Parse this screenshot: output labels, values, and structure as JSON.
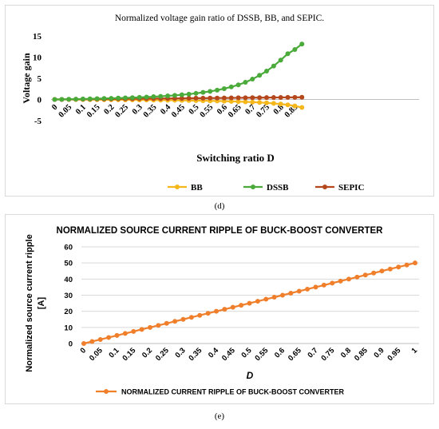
{
  "chart_data": [
    {
      "type": "line",
      "title": "Normalized voltage gain ratio of DSSB, BB, and SEPIC.",
      "xlabel": "Switching ratio D",
      "ylabel": "Voltage gain",
      "ylim": [
        -5,
        15
      ],
      "yticks": [
        "15",
        "10",
        "5",
        "0",
        "-5"
      ],
      "x_ticklabels": [
        "0",
        "0.05",
        "0.1",
        "0.15",
        "0.2",
        "0.25",
        "0.3",
        "0.35",
        "0.4",
        "0.45",
        "0.5",
        "0.55",
        "0.6",
        "0.65",
        "0.7",
        "0.75",
        "0.8",
        "0.85"
      ],
      "grid": false,
      "legend": "bottom",
      "series": [
        {
          "name": "BB",
          "color": "#f5b81c",
          "x": [
            0,
            0.025,
            0.05,
            0.075,
            0.1,
            0.125,
            0.15,
            0.175,
            0.2,
            0.225,
            0.25,
            0.275,
            0.3,
            0.325,
            0.35,
            0.375,
            0.4,
            0.425,
            0.45,
            0.475,
            0.5,
            0.525,
            0.55,
            0.575,
            0.6,
            0.625,
            0.65,
            0.675,
            0.7,
            0.725,
            0.75,
            0.775,
            0.8,
            0.825,
            0.85,
            0.875
          ],
          "values": [
            0,
            -0.03,
            -0.05,
            -0.08,
            -0.11,
            -0.14,
            -0.18,
            -0.21,
            -0.25,
            -0.29,
            -0.33,
            -0.38,
            -0.43,
            -0.48,
            -0.54,
            -0.6,
            -0.67,
            -0.74,
            -0.82,
            -0.9,
            -1,
            -1.1,
            -1.22,
            -1.35,
            -1.5,
            -1.67,
            -1.86,
            -2.08,
            -2.33,
            -2.64,
            -3,
            -3.44,
            -4,
            -4.71,
            -5.67,
            -7
          ]
        },
        {
          "name": "DSSB",
          "color": "#4aaa3a",
          "x": [
            0,
            0.025,
            0.05,
            0.075,
            0.1,
            0.125,
            0.15,
            0.175,
            0.2,
            0.225,
            0.25,
            0.275,
            0.3,
            0.325,
            0.35,
            0.375,
            0.4,
            0.425,
            0.45,
            0.475,
            0.5,
            0.525,
            0.55,
            0.575,
            0.6,
            0.625,
            0.65,
            0.675,
            0.7,
            0.725,
            0.75,
            0.775,
            0.8,
            0.825,
            0.85,
            0.875
          ],
          "values": [
            0,
            0.03,
            0.05,
            0.08,
            0.11,
            0.15,
            0.19,
            0.23,
            0.27,
            0.32,
            0.38,
            0.43,
            0.5,
            0.57,
            0.65,
            0.74,
            0.85,
            0.96,
            1.1,
            1.26,
            1.45,
            1.67,
            1.9,
            2.2,
            2.55,
            2.96,
            3.45,
            4.05,
            4.8,
            5.7,
            6.7,
            7.9,
            9.3,
            10.8,
            11.8,
            13.1
          ]
        },
        {
          "name": "SEPIC",
          "color": "#b4471c",
          "x": [
            0,
            0.025,
            0.05,
            0.075,
            0.1,
            0.125,
            0.15,
            0.175,
            0.2,
            0.225,
            0.25,
            0.275,
            0.3,
            0.325,
            0.35,
            0.375,
            0.4,
            0.425,
            0.45,
            0.475,
            0.5,
            0.525,
            0.55,
            0.575,
            0.6,
            0.625,
            0.65,
            0.675,
            0.7,
            0.725,
            0.75,
            0.775,
            0.8,
            0.825,
            0.85,
            0.875
          ],
          "values": [
            0,
            0.01,
            0.03,
            0.04,
            0.06,
            0.07,
            0.09,
            0.1,
            0.12,
            0.13,
            0.15,
            0.16,
            0.18,
            0.19,
            0.21,
            0.22,
            0.24,
            0.25,
            0.27,
            0.28,
            0.3,
            0.31,
            0.33,
            0.34,
            0.36,
            0.37,
            0.39,
            0.4,
            0.42,
            0.43,
            0.45,
            0.46,
            0.48,
            0.49,
            0.5,
            0.52
          ]
        }
      ]
    },
    {
      "type": "line",
      "title": "NORMALIZED SOURCE CURRENT RIPPLE OF BUCK-BOOST CONVERTER",
      "xlabel": "D",
      "ylabel_lines": [
        "Normalized source current ripple",
        "[A]"
      ],
      "ylim": [
        0,
        60
      ],
      "yticks": [
        "60",
        "50",
        "40",
        "30",
        "20",
        "10",
        "0"
      ],
      "x_ticklabels": [
        "0",
        "0.05",
        "0.1",
        "0.15",
        "0.2",
        "0.25",
        "0.3",
        "0.35",
        "0.4",
        "0.45",
        "0.5",
        "0.55",
        "0.6",
        "0.65",
        "0.7",
        "0.75",
        "0.8",
        "0.85",
        "0.9",
        "0.95",
        "1"
      ],
      "grid": true,
      "legend": "bottom",
      "series": [
        {
          "name": "NORMALIZED CURRENT RIPPLE OF BUCK-BOOST CONVERTER",
          "color": "#f07f2c",
          "x": [
            0,
            0.025,
            0.05,
            0.075,
            0.1,
            0.125,
            0.15,
            0.175,
            0.2,
            0.225,
            0.25,
            0.275,
            0.3,
            0.325,
            0.35,
            0.375,
            0.4,
            0.425,
            0.45,
            0.475,
            0.5,
            0.525,
            0.55,
            0.575,
            0.6,
            0.625,
            0.65,
            0.675,
            0.7,
            0.725,
            0.75,
            0.775,
            0.8,
            0.825,
            0.85,
            0.875,
            0.9,
            0.925,
            0.95,
            0.975,
            1
          ],
          "values": [
            0,
            1.25,
            2.5,
            3.75,
            5,
            6.25,
            7.5,
            8.75,
            10,
            11.25,
            12.5,
            13.75,
            15,
            16.25,
            17.5,
            18.75,
            20,
            21.25,
            22.5,
            23.75,
            25,
            26.25,
            27.5,
            28.75,
            30,
            31.25,
            32.5,
            33.75,
            35,
            36.25,
            37.5,
            38.75,
            40,
            41.25,
            42.5,
            43.75,
            45,
            46.25,
            47.5,
            48.75,
            50
          ]
        }
      ]
    }
  ],
  "captions": {
    "d": "(d)",
    "e": "(e)"
  }
}
